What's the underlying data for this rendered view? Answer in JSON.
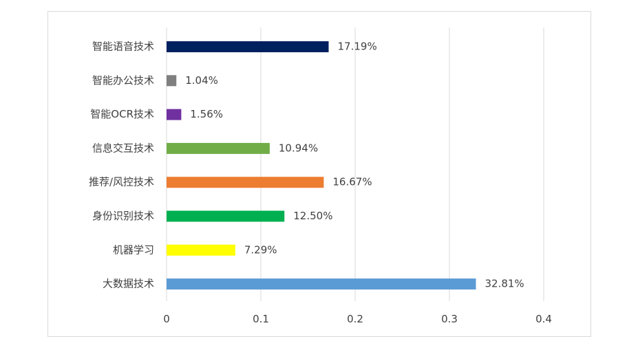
{
  "chart_data": {
    "type": "bar",
    "orientation": "horizontal",
    "categories": [
      "智能语音技术",
      "智能办公技术",
      "智能OCR技术",
      "信息交互技术",
      "推荐/风控技术",
      "身份识别技术",
      "机器学习",
      "大数据技术"
    ],
    "values": [
      0.1719,
      0.0104,
      0.0156,
      0.1094,
      0.1667,
      0.125,
      0.0729,
      0.3281
    ],
    "data_labels": [
      "17.19%",
      "1.04%",
      "1.56%",
      "10.94%",
      "16.67%",
      "12.50%",
      "7.29%",
      "32.81%"
    ],
    "colors": [
      "#002060",
      "#7f7f7f",
      "#7030a0",
      "#70ad47",
      "#ed7d31",
      "#00b050",
      "#ffff00",
      "#5b9bd5"
    ],
    "xlim": [
      0,
      0.4
    ],
    "x_ticks": [
      "0",
      "0.1",
      "0.2",
      "0.3",
      "0.4"
    ],
    "grid": true,
    "legend": "none"
  }
}
